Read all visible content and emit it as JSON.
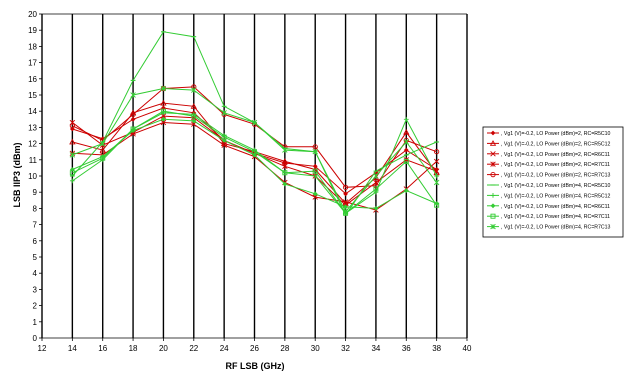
{
  "chart_data": {
    "type": "line",
    "title": "",
    "xlabel": "RF LSB (GHz)",
    "ylabel": "LSB IIP3 (dBm)",
    "xlim": [
      12,
      40
    ],
    "ylim": [
      0,
      20
    ],
    "x_ticks": [
      "12",
      "14",
      "16",
      "18",
      "20",
      "22",
      "24",
      "26",
      "28",
      "30",
      "32",
      "34",
      "36",
      "38",
      "40"
    ],
    "y_ticks": [
      "0",
      "1",
      "2",
      "3",
      "4",
      "5",
      "6",
      "7",
      "8",
      "9",
      "10",
      "11",
      "12",
      "13",
      "14",
      "15",
      "16",
      "17",
      "18",
      "19",
      "20"
    ],
    "grid": "vertical",
    "legend_position": "right",
    "x": [
      14,
      16,
      18,
      20,
      22,
      24,
      26,
      28,
      30,
      32,
      34,
      36,
      38
    ],
    "series": [
      {
        "name": ", Vg1 (V)=-0.2, LO Power (dBm)=2, RC=R5C10",
        "color": "#cc0000",
        "marker": "diamond",
        "values": [
          12.9,
          12.3,
          13.5,
          14.2,
          13.9,
          12.2,
          11.4,
          10.8,
          10.6,
          8.9,
          10.2,
          11.6,
          10.4
        ]
      },
      {
        "name": ", Vg1 (V)=-0.2, LO Power (dBm)=2, RC=R5C12",
        "color": "#cc0000",
        "marker": "triangle",
        "values": [
          12.1,
          11.6,
          13.9,
          14.5,
          14.3,
          12.0,
          11.5,
          10.9,
          10.4,
          8.3,
          9.9,
          12.7,
          10.2
        ]
      },
      {
        "name": ", Vg1 (V)=-0.2, LO Power (dBm)=2, RC=R6C11",
        "color": "#cc0000",
        "marker": "x",
        "values": [
          11.4,
          11.3,
          12.6,
          13.3,
          13.2,
          11.9,
          11.2,
          9.6,
          8.7,
          8.4,
          7.9,
          9.2,
          10.9
        ]
      },
      {
        "name": ", Vg1 (V)=-0.2, LO Power (dBm)=2, RC=R7C11",
        "color": "#cc0000",
        "marker": "star",
        "values": [
          13.3,
          11.9,
          12.7,
          13.7,
          13.6,
          12.2,
          11.4,
          10.6,
          10.0,
          8.2,
          9.6,
          11.0,
          10.3
        ]
      },
      {
        "name": ", Vg1 (V)=-0.2, LO Power (dBm)=2, RC=R7C13",
        "color": "#cc0000",
        "marker": "circle",
        "values": [
          13.1,
          12.2,
          13.8,
          15.4,
          15.5,
          13.8,
          13.2,
          11.8,
          11.8,
          9.3,
          9.4,
          12.2,
          11.5
        ]
      },
      {
        "name": ", Vg1 (V)=-0.2, LO Power (dBm)=4, RC=R5C10",
        "color": "#33cc33",
        "marker": "dash",
        "values": [
          10.0,
          12.1,
          15.9,
          18.9,
          18.6,
          14.3,
          13.3,
          11.7,
          11.5,
          7.6,
          10.3,
          11.3,
          12.1
        ]
      },
      {
        "name": ", Vg1 (V)=-0.2, LO Power (dBm)=4, RC=R5C12",
        "color": "#33cc33",
        "marker": "plus",
        "values": [
          9.7,
          11.0,
          12.9,
          13.9,
          13.8,
          12.5,
          11.6,
          10.2,
          10.0,
          7.7,
          9.0,
          13.5,
          10.0
        ]
      },
      {
        "name": ", Vg1 (V)=-0.2, LO Power (dBm)=4, RC=R6C11",
        "color": "#33cc33",
        "marker": "diamond",
        "values": [
          10.4,
          11.2,
          12.8,
          13.5,
          13.4,
          12.2,
          11.3,
          9.5,
          8.9,
          8.1,
          8.0,
          9.1,
          8.3
        ]
      },
      {
        "name": ", Vg1 (V)=-0.2, LO Power (dBm)=4, RC=R7C11",
        "color": "#33cc33",
        "marker": "square",
        "values": [
          10.2,
          11.1,
          12.9,
          14.0,
          13.7,
          12.4,
          11.5,
          10.2,
          10.3,
          7.7,
          9.2,
          10.9,
          8.2
        ]
      },
      {
        "name": ", Vg1 (V)=-0.2, LO Power (dBm)=4, RC=R7C13",
        "color": "#33cc33",
        "marker": "star",
        "values": [
          11.3,
          12.0,
          15.0,
          15.4,
          15.3,
          13.9,
          13.3,
          11.6,
          11.5,
          7.8,
          10.0,
          12.1,
          9.6
        ]
      }
    ]
  }
}
